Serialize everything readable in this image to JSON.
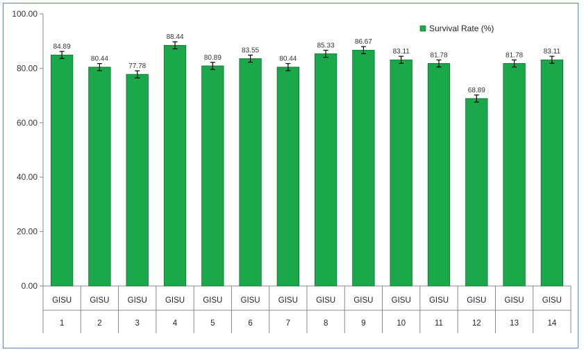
{
  "chart_data": {
    "type": "bar",
    "categories": [
      "1",
      "2",
      "3",
      "4",
      "5",
      "6",
      "7",
      "8",
      "9",
      "10",
      "11",
      "12",
      "13",
      "14"
    ],
    "category_group_label": "GISU",
    "series": [
      {
        "name": "Survival Rate (%)",
        "values": [
          84.89,
          80.44,
          77.78,
          88.44,
          80.89,
          83.55,
          80.44,
          85.33,
          86.67,
          83.11,
          81.78,
          68.89,
          81.78,
          83.11
        ],
        "error": [
          1.3,
          1.3,
          1.3,
          1.3,
          1.3,
          1.3,
          1.3,
          1.3,
          1.3,
          1.3,
          1.3,
          1.3,
          1.3,
          1.3
        ],
        "color": "#1aa84a"
      }
    ],
    "data_labels": [
      "84.89",
      "80.44",
      "77.78",
      "88.44",
      "80.89",
      "83.55",
      "80.44",
      "85.33",
      "86.67",
      "83.11",
      "81.78",
      "68.89",
      "81.78",
      "83.11"
    ],
    "yticks": [
      "0.00",
      "20.00",
      "40.00",
      "60.00",
      "80.00",
      "100.00"
    ],
    "ylim": [
      0,
      100
    ],
    "legend_position": "top-right",
    "grid": false,
    "title": "",
    "xlabel": "",
    "ylabel": ""
  },
  "colors": {
    "frame_border": "#5b87c7",
    "bar_fill": "#1aa84a",
    "bar_stroke": "#0f6e2f",
    "axis": "#888888"
  }
}
